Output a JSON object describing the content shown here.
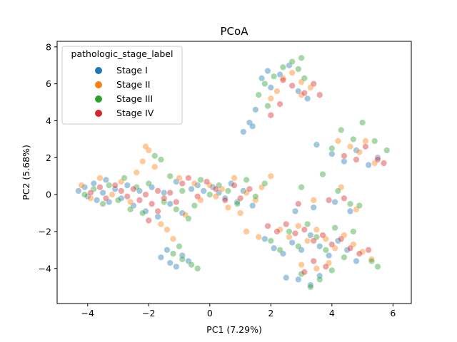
{
  "chart_data": {
    "type": "scatter",
    "title": "PCoA",
    "xlabel": "PC1 (7.29%)",
    "ylabel": "PC2 (5.68%)",
    "xlim": [
      -5.0,
      6.6
    ],
    "ylim": [
      -5.9,
      8.3
    ],
    "xticks": [
      -4,
      -2,
      0,
      2,
      4,
      6
    ],
    "yticks": [
      -4,
      -2,
      0,
      2,
      4,
      6,
      8
    ],
    "xtick_labels": [
      "−4",
      "−2",
      "0",
      "2",
      "4",
      "6"
    ],
    "ytick_labels": [
      "−4",
      "−2",
      "0",
      "2",
      "4",
      "6",
      "8"
    ],
    "grid": false,
    "legend": {
      "title": "pathologic_stage_label",
      "placement": "top-left"
    },
    "series": [
      {
        "name": "Stage I",
        "color": "#1f77b4",
        "points": [
          [
            -4.3,
            0.2
          ],
          [
            -4.1,
            0.4
          ],
          [
            -4.0,
            -0.1
          ],
          [
            -3.8,
            0.6
          ],
          [
            -3.7,
            -0.3
          ],
          [
            -3.5,
            0.1
          ],
          [
            -3.4,
            0.8
          ],
          [
            -3.3,
            -0.4
          ],
          [
            -3.1,
            0.3
          ],
          [
            -2.9,
            -0.2
          ],
          [
            -2.7,
            0.5
          ],
          [
            -2.5,
            -0.6
          ],
          [
            -2.3,
            0.2
          ],
          [
            -2.1,
            -0.9
          ],
          [
            -1.9,
            0.4
          ],
          [
            -1.7,
            -1.2
          ],
          [
            -1.5,
            0.1
          ],
          [
            -1.3,
            -0.5
          ],
          [
            -1.1,
            0.7
          ],
          [
            -0.9,
            -1.0
          ],
          [
            -0.6,
            0.3
          ],
          [
            -0.4,
            0.5
          ],
          [
            -0.2,
            0.2
          ],
          [
            0.1,
            0.4
          ],
          [
            0.3,
            0.1
          ],
          [
            0.5,
            -0.2
          ],
          [
            0.7,
            0.6
          ],
          [
            0.9,
            -0.4
          ],
          [
            1.1,
            0.2
          ],
          [
            1.4,
            -0.6
          ],
          [
            -1.6,
            -3.4
          ],
          [
            -1.3,
            -3.7
          ],
          [
            -1.1,
            -3.9
          ],
          [
            -0.9,
            -3.3
          ],
          [
            -0.7,
            -3.6
          ],
          [
            -1.4,
            -3.0
          ],
          [
            1.7,
            6.3
          ],
          [
            1.9,
            6.7
          ],
          [
            2.0,
            5.8
          ],
          [
            2.3,
            6.5
          ],
          [
            2.6,
            7.0
          ],
          [
            1.5,
            4.6
          ],
          [
            1.3,
            3.9
          ],
          [
            1.1,
            3.4
          ],
          [
            1.4,
            3.7
          ],
          [
            2.9,
            5.6
          ],
          [
            3.2,
            5.2
          ],
          [
            3.5,
            2.7
          ],
          [
            4.0,
            2.2
          ],
          [
            4.4,
            1.8
          ],
          [
            4.8,
            2.4
          ],
          [
            5.2,
            1.6
          ],
          [
            5.5,
            2.0
          ],
          [
            1.8,
            -2.4
          ],
          [
            2.1,
            -2.9
          ],
          [
            2.4,
            -3.2
          ],
          [
            2.7,
            -2.6
          ],
          [
            3.0,
            -3.0
          ],
          [
            3.3,
            -2.2
          ],
          [
            3.6,
            -2.8
          ],
          [
            3.9,
            -3.3
          ],
          [
            4.2,
            -2.5
          ],
          [
            4.5,
            -3.0
          ],
          [
            4.8,
            -3.6
          ],
          [
            2.5,
            -4.5
          ],
          [
            2.9,
            -4.6
          ],
          [
            3.3,
            -4.9
          ],
          [
            3.6,
            -4.4
          ],
          [
            2.8,
            -0.9
          ],
          [
            3.4,
            -0.7
          ],
          [
            4.1,
            -0.4
          ],
          [
            4.6,
            -0.9
          ]
        ]
      },
      {
        "name": "Stage II",
        "color": "#ff7f0e",
        "points": [
          [
            -4.2,
            0.5
          ],
          [
            -3.9,
            -0.2
          ],
          [
            -3.6,
            0.9
          ],
          [
            -3.2,
            0.0
          ],
          [
            -2.9,
            0.7
          ],
          [
            -2.6,
            -0.4
          ],
          [
            -2.4,
            1.2
          ],
          [
            -2.2,
            1.8
          ],
          [
            -2.0,
            2.4
          ],
          [
            -2.1,
            2.6
          ],
          [
            -1.8,
            1.5
          ],
          [
            -1.6,
            -1.6
          ],
          [
            -1.4,
            -1.9
          ],
          [
            -1.2,
            -2.4
          ],
          [
            -1.0,
            0.9
          ],
          [
            -0.8,
            -1.1
          ],
          [
            -0.5,
            0.6
          ],
          [
            -0.3,
            -0.3
          ],
          [
            0.0,
            0.5
          ],
          [
            0.2,
            -0.1
          ],
          [
            0.4,
            0.3
          ],
          [
            0.6,
            -0.7
          ],
          [
            0.8,
            0.9
          ],
          [
            1.0,
            -1.0
          ],
          [
            1.2,
            0.1
          ],
          [
            1.5,
            -0.3
          ],
          [
            1.7,
            0.4
          ],
          [
            2.0,
            1.0
          ],
          [
            1.2,
            -2.0
          ],
          [
            1.6,
            -2.3
          ],
          [
            2.0,
            5.2
          ],
          [
            2.2,
            5.6
          ],
          [
            2.4,
            6.3
          ],
          [
            2.7,
            6.6
          ],
          [
            3.0,
            6.1
          ],
          [
            3.3,
            5.8
          ],
          [
            3.0,
            5.4
          ],
          [
            4.2,
            2.9
          ],
          [
            4.6,
            2.6
          ],
          [
            4.9,
            2.3
          ],
          [
            5.1,
            2.9
          ],
          [
            5.4,
            1.7
          ],
          [
            2.3,
            -1.9
          ],
          [
            2.6,
            -2.3
          ],
          [
            2.9,
            -1.7
          ],
          [
            3.2,
            -2.5
          ],
          [
            3.5,
            -1.9
          ],
          [
            3.8,
            -2.4
          ],
          [
            4.1,
            -2.9
          ],
          [
            4.4,
            -2.2
          ],
          [
            4.7,
            -2.7
          ],
          [
            5.0,
            -3.1
          ],
          [
            5.3,
            -3.5
          ],
          [
            3.0,
            -3.8
          ],
          [
            3.5,
            -4.0
          ],
          [
            3.9,
            -3.7
          ],
          [
            3.4,
            -0.3
          ],
          [
            4.3,
            0.4
          ],
          [
            4.8,
            -0.8
          ]
        ]
      },
      {
        "name": "Stage III",
        "color": "#2ca02c",
        "points": [
          [
            -4.1,
            0.0
          ],
          [
            -3.8,
            0.3
          ],
          [
            -3.5,
            -0.5
          ],
          [
            -3.3,
            0.5
          ],
          [
            -3.0,
            -0.3
          ],
          [
            -2.8,
            0.9
          ],
          [
            -2.6,
            -0.8
          ],
          [
            -2.4,
            0.4
          ],
          [
            -2.2,
            -1.0
          ],
          [
            -2.0,
            0.6
          ],
          [
            -1.8,
            2.1
          ],
          [
            -1.6,
            1.9
          ],
          [
            -1.5,
            -0.4
          ],
          [
            -1.3,
            1.0
          ],
          [
            -1.1,
            -0.8
          ],
          [
            -0.9,
            0.2
          ],
          [
            -0.7,
            -1.3
          ],
          [
            -0.5,
            -0.6
          ],
          [
            -0.3,
            0.8
          ],
          [
            0.0,
            0.0
          ],
          [
            0.3,
            0.5
          ],
          [
            0.6,
            0.2
          ],
          [
            0.9,
            -0.5
          ],
          [
            1.2,
            0.8
          ],
          [
            1.5,
            -0.1
          ],
          [
            1.8,
            0.6
          ],
          [
            -1.2,
            -3.2
          ],
          [
            -0.9,
            -3.5
          ],
          [
            -0.6,
            -3.8
          ],
          [
            -0.4,
            -4.0
          ],
          [
            -1.0,
            -2.8
          ],
          [
            1.8,
            6.0
          ],
          [
            2.1,
            6.4
          ],
          [
            2.4,
            6.9
          ],
          [
            2.7,
            7.2
          ],
          [
            3.0,
            7.4
          ],
          [
            2.9,
            6.8
          ],
          [
            3.1,
            6.3
          ],
          [
            1.6,
            5.4
          ],
          [
            1.9,
            4.8
          ],
          [
            4.0,
            2.5
          ],
          [
            4.3,
            3.5
          ],
          [
            4.7,
            3.0
          ],
          [
            5.0,
            3.9
          ],
          [
            5.4,
            2.9
          ],
          [
            5.8,
            2.4
          ],
          [
            2.0,
            -2.5
          ],
          [
            2.3,
            -3.0
          ],
          [
            2.6,
            -2.0
          ],
          [
            2.9,
            -2.8
          ],
          [
            3.2,
            -1.6
          ],
          [
            3.5,
            -2.3
          ],
          [
            3.8,
            -3.0
          ],
          [
            4.1,
            -1.8
          ],
          [
            4.4,
            -3.4
          ],
          [
            4.7,
            -2.0
          ],
          [
            5.3,
            -3.6
          ],
          [
            5.5,
            -3.9
          ],
          [
            3.0,
            -4.3
          ],
          [
            3.3,
            -5.0
          ],
          [
            3.6,
            -4.6
          ],
          [
            4.0,
            -4.1
          ],
          [
            3.0,
            0.4
          ],
          [
            3.7,
            1.1
          ],
          [
            4.2,
            0.2
          ],
          [
            4.6,
            -0.5
          ],
          [
            4.9,
            -0.6
          ]
        ]
      },
      {
        "name": "Stage IV",
        "color": "#d62728",
        "points": [
          [
            -3.9,
            0.1
          ],
          [
            -3.6,
            0.4
          ],
          [
            -3.4,
            -0.2
          ],
          [
            -3.1,
            0.5
          ],
          [
            -2.9,
            0.2
          ],
          [
            -2.7,
            -0.1
          ],
          [
            -2.5,
            0.3
          ],
          [
            -2.3,
            -0.3
          ],
          [
            -2.1,
            0.0
          ],
          [
            -1.9,
            -0.5
          ],
          [
            -1.7,
            0.2
          ],
          [
            -1.5,
            -0.2
          ],
          [
            -1.3,
            0.1
          ],
          [
            -1.1,
            -0.4
          ],
          [
            -0.9,
            0.6
          ],
          [
            -0.7,
            0.9
          ],
          [
            -0.4,
            -0.1
          ],
          [
            -0.1,
            0.7
          ],
          [
            0.2,
            0.3
          ],
          [
            0.5,
            -0.3
          ],
          [
            0.8,
            0.5
          ],
          [
            1.0,
            -0.2
          ],
          [
            1.3,
            0.3
          ],
          [
            -2.0,
            -1.4
          ],
          [
            -1.7,
            -0.9
          ],
          [
            2.4,
            6.2
          ],
          [
            2.7,
            5.9
          ],
          [
            3.1,
            5.5
          ],
          [
            3.4,
            6.0
          ],
          [
            3.6,
            5.4
          ],
          [
            2.3,
            4.9
          ],
          [
            2.0,
            4.3
          ],
          [
            4.4,
            2.1
          ],
          [
            4.8,
            1.9
          ],
          [
            5.1,
            2.6
          ],
          [
            5.5,
            1.9
          ],
          [
            5.7,
            1.7
          ],
          [
            1.9,
            -1.7
          ],
          [
            2.2,
            -2.0
          ],
          [
            2.5,
            -1.6
          ],
          [
            2.8,
            -2.1
          ],
          [
            3.1,
            -1.9
          ],
          [
            3.4,
            -2.5
          ],
          [
            3.7,
            -2.2
          ],
          [
            4.0,
            -2.7
          ],
          [
            4.3,
            -2.4
          ],
          [
            4.6,
            -2.9
          ],
          [
            4.9,
            -3.2
          ],
          [
            5.2,
            -3.0
          ],
          [
            3.4,
            -3.6
          ],
          [
            3.8,
            -3.9
          ],
          [
            3.1,
            -4.2
          ],
          [
            2.9,
            -0.5
          ],
          [
            3.9,
            -0.3
          ],
          [
            4.4,
            -0.2
          ]
        ]
      }
    ]
  }
}
